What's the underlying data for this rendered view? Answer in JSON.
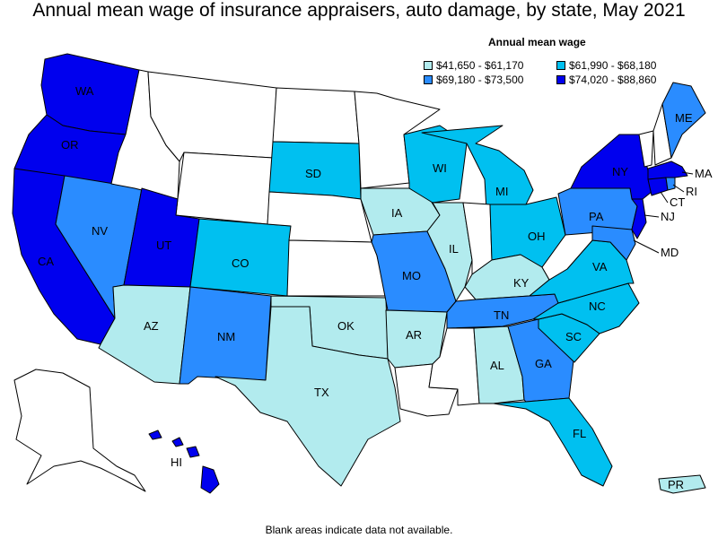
{
  "title": "Annual mean wage of insurance appraisers, auto damage, by state, May 2021",
  "legend": {
    "title": "Annual mean wage",
    "items": [
      {
        "range": "$41,650 - $61,170",
        "color": "#b2ebee"
      },
      {
        "range": "$61,990 - $68,180",
        "color": "#00c0f0"
      },
      {
        "range": "$69,180 - $73,500",
        "color": "#2a8cff"
      },
      {
        "range": "$74,020 - $88,860",
        "color": "#0000ee"
      }
    ]
  },
  "colors": {
    "no_data": "#ffffff",
    "border": "#000000"
  },
  "states": {
    "WA": 3,
    "OR": 3,
    "CA": 3,
    "NV": 2,
    "UT": 3,
    "AZ": 0,
    "CO": 1,
    "NM": 2,
    "TX": 0,
    "OK": 0,
    "SD": 1,
    "IA": 0,
    "MO": 2,
    "AR": 0,
    "WI": 1,
    "IL": 0,
    "MI": 1,
    "OH": 1,
    "KY": 0,
    "TN": 2,
    "AL": 0,
    "GA": 2,
    "FL": 1,
    "SC": 1,
    "NC": 1,
    "VA": 1,
    "PA": 2,
    "NY": 3,
    "ME": 2,
    "MA": 3,
    "NJ": 3,
    "CT": 3,
    "RI": 2,
    "MD": 2,
    "HI": 3,
    "PR": 0
  },
  "state_labels": [
    "WA",
    "OR",
    "CA",
    "NV",
    "UT",
    "AZ",
    "CO",
    "NM",
    "TX",
    "OK",
    "SD",
    "IA",
    "MO",
    "AR",
    "WI",
    "IL",
    "MI",
    "OH",
    "KY",
    "TN",
    "AL",
    "GA",
    "FL",
    "SC",
    "NC",
    "VA",
    "PA",
    "NY",
    "ME",
    "MA",
    "NJ",
    "CT",
    "RI",
    "MD",
    "HI",
    "PR"
  ],
  "footnote": "Blank areas indicate data not available."
}
